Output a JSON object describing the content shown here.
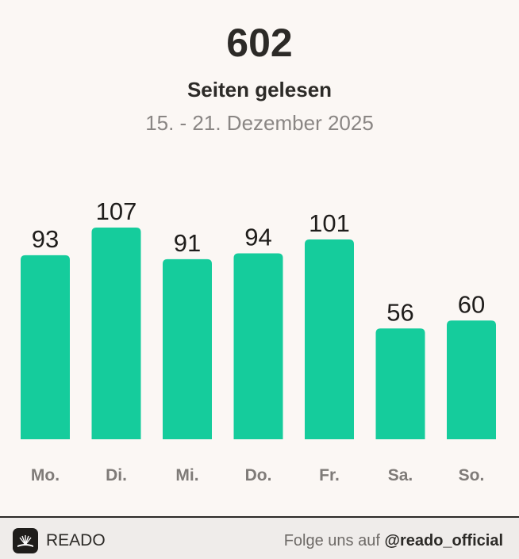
{
  "header": {
    "total": "602",
    "subtitle": "Seiten gelesen",
    "date_range": "15. - 21. Dezember 2025"
  },
  "chart_data": {
    "type": "bar",
    "categories": [
      "Mo.",
      "Di.",
      "Mi.",
      "Do.",
      "Fr.",
      "Sa.",
      "So."
    ],
    "values": [
      93,
      107,
      91,
      94,
      101,
      56,
      60
    ],
    "data_labels": [
      "93",
      "107",
      "91",
      "94",
      "101",
      "56",
      "60"
    ],
    "ylim": [
      0,
      107
    ],
    "grid": false,
    "legend": "none",
    "bar_color": "#15cc9c"
  },
  "footer": {
    "brand": "READO",
    "follow_text": "Folge uns auf ",
    "handle": "@reado_official",
    "logo_icon": "book-pages-icon"
  },
  "colors": {
    "background": "#fbf7f4",
    "text": "#2c2a27",
    "muted": "#8a8684",
    "bar": "#15cc9c",
    "footer_bg": "#efecea"
  }
}
